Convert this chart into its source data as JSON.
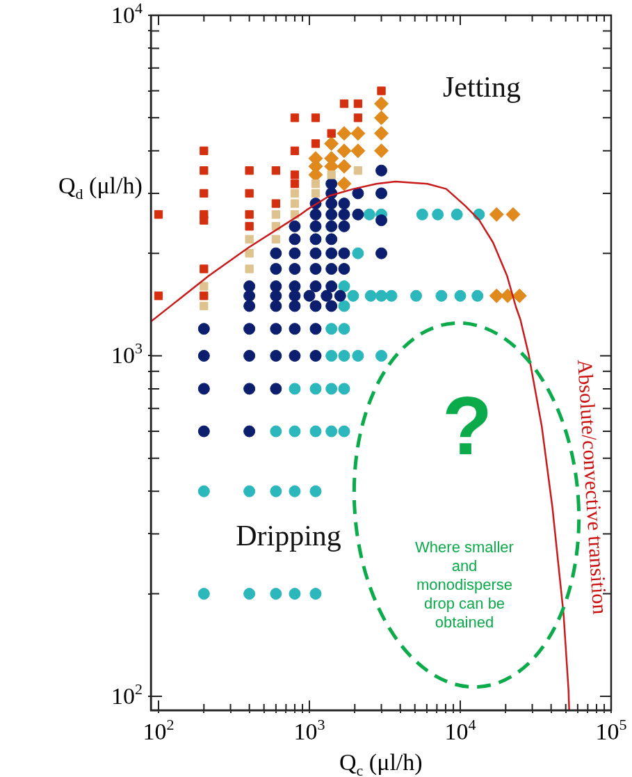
{
  "chart_data": {
    "type": "scatter",
    "xlabel": "Q$_{c}$ (μl/h)",
    "ylabel": "Q$_{d}$ (μl/h)",
    "log": "xy",
    "xlim": [
      89,
      100000
    ],
    "ylim": [
      91,
      10000
    ],
    "xticks": [
      {
        "value": 100,
        "label": "10$^{2}$"
      },
      {
        "value": 200,
        "label": null
      },
      {
        "value": 300,
        "label": null
      },
      {
        "value": 400,
        "label": null
      },
      {
        "value": 500,
        "label": null
      },
      {
        "value": 600,
        "label": null
      },
      {
        "value": 700,
        "label": null
      },
      {
        "value": 800,
        "label": null
      },
      {
        "value": 900,
        "label": null
      },
      {
        "value": 1000,
        "label": "10$^{3}$"
      },
      {
        "value": 2000,
        "label": null
      },
      {
        "value": 3000,
        "label": null
      },
      {
        "value": 4000,
        "label": null
      },
      {
        "value": 5000,
        "label": null
      },
      {
        "value": 6000,
        "label": null
      },
      {
        "value": 7000,
        "label": null
      },
      {
        "value": 8000,
        "label": null
      },
      {
        "value": 9000,
        "label": null
      },
      {
        "value": 10000,
        "label": "10$^{4}$"
      },
      {
        "value": 20000,
        "label": null
      },
      {
        "value": 30000,
        "label": null
      },
      {
        "value": 40000,
        "label": null
      },
      {
        "value": 50000,
        "label": null
      },
      {
        "value": 60000,
        "label": null
      },
      {
        "value": 70000,
        "label": null
      },
      {
        "value": 80000,
        "label": null
      },
      {
        "value": 90000,
        "label": null
      },
      {
        "value": 100000,
        "label": "10$^{5}$"
      }
    ],
    "yticks": [
      {
        "value": 100,
        "label": "10$^{2}$"
      },
      {
        "value": 200,
        "label": null
      },
      {
        "value": 300,
        "label": null
      },
      {
        "value": 400,
        "label": null
      },
      {
        "value": 500,
        "label": null
      },
      {
        "value": 600,
        "label": null
      },
      {
        "value": 700,
        "label": null
      },
      {
        "value": 800,
        "label": null
      },
      {
        "value": 900,
        "label": null
      },
      {
        "value": 1000,
        "label": "10$^{3}$"
      },
      {
        "value": 2000,
        "label": null
      },
      {
        "value": 3000,
        "label": null
      },
      {
        "value": 4000,
        "label": null
      },
      {
        "value": 5000,
        "label": null
      },
      {
        "value": 6000,
        "label": null
      },
      {
        "value": 7000,
        "label": null
      },
      {
        "value": 8000,
        "label": null
      },
      {
        "value": 9000,
        "label": null
      },
      {
        "value": 10000,
        "label": "10$^{4}$"
      }
    ],
    "series": [
      {
        "marker": "square",
        "color": "#d4300f",
        "x": [
          100,
          100,
          200,
          200,
          200,
          200,
          200,
          200,
          200,
          400,
          400,
          400,
          400,
          600,
          600,
          800,
          800,
          800,
          800,
          1100,
          1100,
          1400,
          1700,
          2100,
          2100,
          3000
        ],
        "values": [
          2600,
          1500,
          4000,
          3500,
          3000,
          2600,
          2500,
          1800,
          1500,
          3500,
          3000,
          2600,
          2400,
          3500,
          2800,
          5000,
          4000,
          3400,
          3200,
          5000,
          4200,
          4500,
          5500,
          5500,
          5000,
          6000
        ]
      },
      {
        "marker": "square",
        "color": "#dfc38f",
        "x": [
          200,
          200,
          400,
          400,
          400,
          600,
          600,
          600,
          800,
          800,
          800,
          1100,
          1100,
          1400,
          2100
        ],
        "values": [
          1600,
          1400,
          2200,
          2000,
          1800,
          2600,
          2400,
          2200,
          3000,
          2800,
          2600,
          3200,
          3000,
          3400,
          3500
        ]
      },
      {
        "marker": "diamond",
        "color": "#e0891c",
        "x": [
          1100,
          1100,
          1100,
          1400,
          1400,
          1400,
          1700,
          1700,
          1700,
          1700,
          2100,
          2100,
          3000,
          3000,
          3000,
          3000,
          17400,
          22400,
          17400,
          20600,
          24700
        ],
        "values": [
          3800,
          3600,
          3400,
          4200,
          3800,
          3600,
          4500,
          4000,
          3600,
          3200,
          4500,
          4000,
          5500,
          5000,
          4500,
          4000,
          2600,
          2600,
          1500,
          1500,
          1500
        ]
      },
      {
        "marker": "circle",
        "color": "#0c1f6f",
        "x": [
          3000,
          1400,
          1400,
          2100,
          3000,
          1100,
          1400,
          1700,
          1100,
          1400,
          1700,
          2100,
          3000,
          800,
          1100,
          1400,
          1700,
          800,
          1100,
          1400,
          600,
          800,
          1100,
          1400,
          1700,
          3000,
          600,
          800,
          1100,
          1400,
          1700,
          400,
          600,
          800,
          1100,
          1400,
          400,
          600,
          800,
          1000,
          1300,
          1600,
          400,
          600,
          800,
          1100,
          1400,
          200,
          400,
          600,
          800,
          1100,
          200,
          400,
          600,
          800,
          1100,
          200,
          400,
          600,
          200,
          400
        ],
        "values": [
          3500,
          3200,
          3000,
          3000,
          3000,
          2800,
          2800,
          2800,
          2600,
          2600,
          2600,
          2600,
          2500,
          2400,
          2400,
          2400,
          2400,
          2200,
          2200,
          2200,
          2000,
          2000,
          2000,
          2000,
          2000,
          2000,
          1800,
          1800,
          1800,
          1800,
          1800,
          1600,
          1600,
          1600,
          1600,
          1600,
          1500,
          1500,
          1500,
          1500,
          1500,
          1500,
          1400,
          1400,
          1400,
          1400,
          1400,
          1200,
          1200,
          1200,
          1200,
          1200,
          1000,
          1000,
          1000,
          1000,
          1000,
          800,
          800,
          800,
          600,
          600
        ]
      },
      {
        "marker": "circle",
        "color": "#2bb7bb",
        "x": [
          2500,
          3000,
          5600,
          7100,
          9500,
          13300,
          2100,
          1700,
          1950,
          2550,
          3000,
          3500,
          5100,
          7500,
          10000,
          13000,
          1700,
          1400,
          1700,
          1400,
          1700,
          2100,
          3000,
          800,
          1100,
          1400,
          1700,
          600,
          800,
          1100,
          1400,
          1700,
          200,
          400,
          600,
          800,
          1100,
          200,
          400,
          600,
          800,
          1100
        ],
        "values": [
          2600,
          2600,
          2600,
          2600,
          2600,
          2600,
          2000,
          1600,
          1500,
          1500,
          1500,
          1500,
          1500,
          1500,
          1500,
          1500,
          1400,
          1200,
          1200,
          1000,
          1000,
          1000,
          1000,
          800,
          800,
          800,
          800,
          600,
          600,
          600,
          600,
          600,
          400,
          400,
          400,
          400,
          400,
          200,
          200,
          200,
          200,
          200
        ]
      },
      {
        "type": "line",
        "marker": "none",
        "line_style": "solid",
        "color": "#c81a1a",
        "x": [
          89,
          216,
          396,
          862,
          958,
          1360,
          1960,
          2780,
          3710,
          6060,
          8080,
          10750,
          13300,
          16500,
          20400,
          23400,
          25000,
          28400,
          34700,
          40800,
          48400,
          52200,
          52700
        ],
        "values": [
          1260,
          1720,
          2080,
          2590,
          2680,
          2950,
          3090,
          3200,
          3250,
          3200,
          3090,
          2760,
          2510,
          2150,
          1720,
          1390,
          1280,
          1010,
          620,
          359,
          174,
          104,
          91
        ]
      }
    ],
    "annotations": [
      "Jetting",
      "Dripping",
      "?",
      "Where smaller and monodisperse drop can be obtained",
      "Absolute/convective transition"
    ]
  }
}
